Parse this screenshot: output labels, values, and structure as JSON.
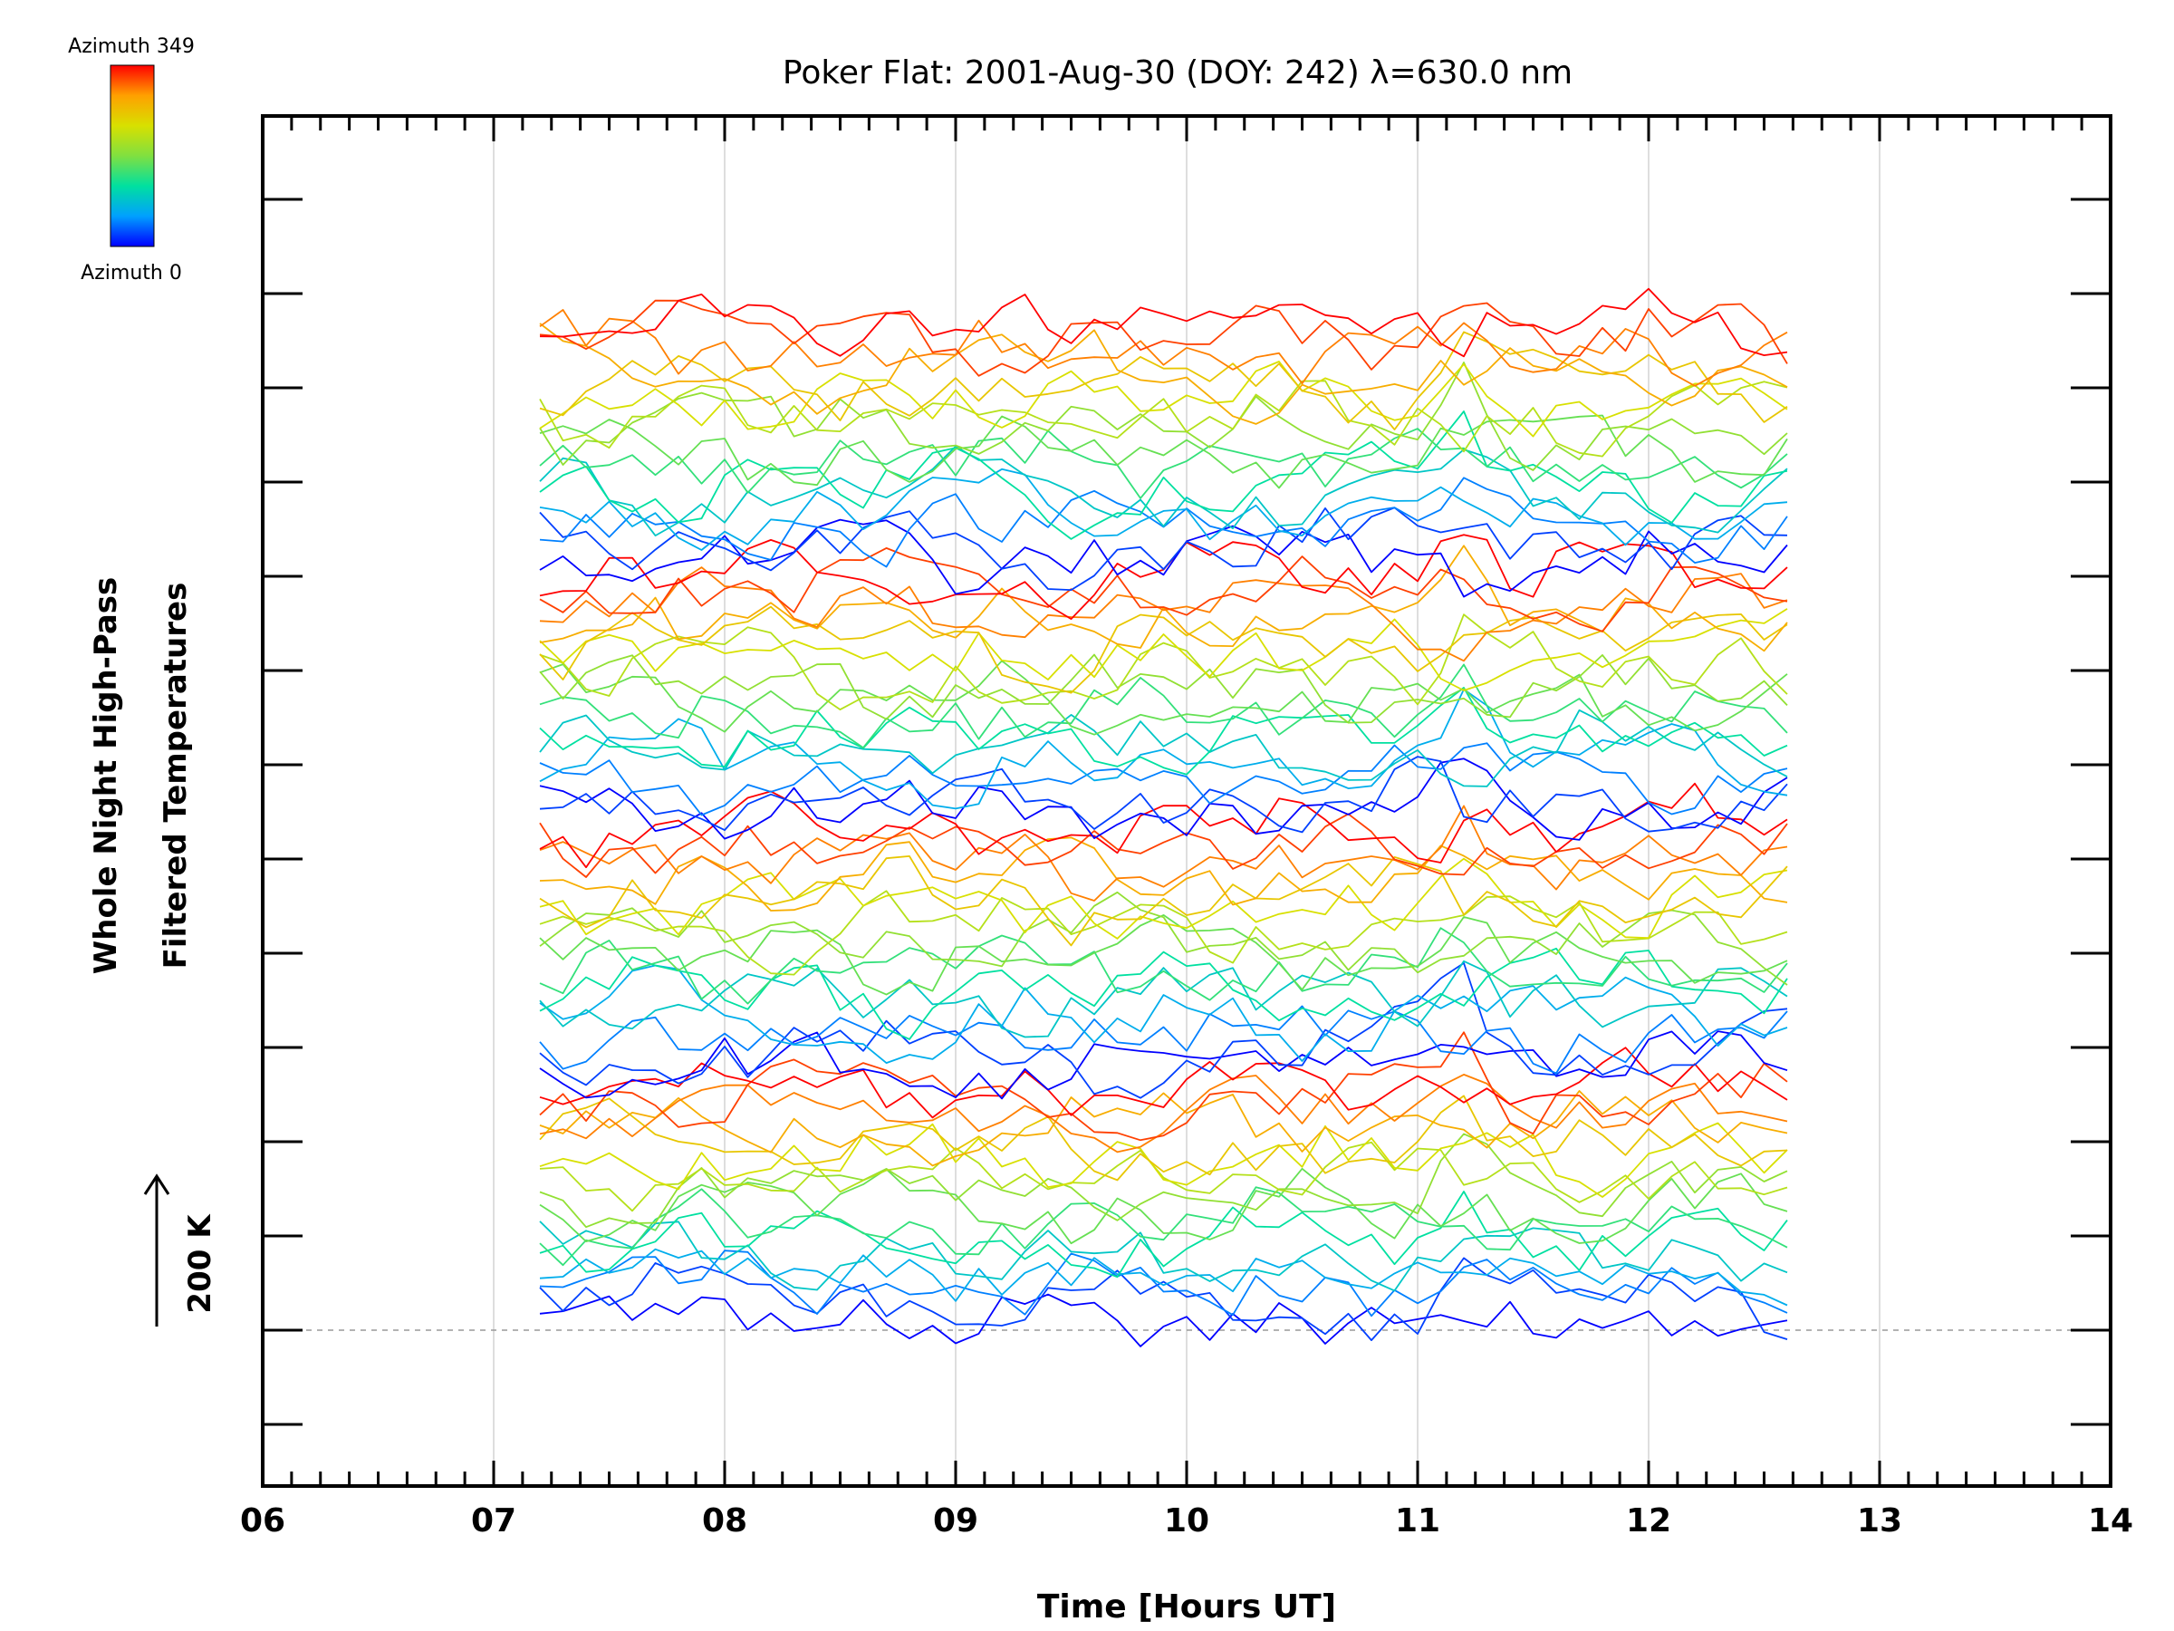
{
  "chart_data": {
    "type": "line",
    "title": "Poker Flat: 2001-Aug-30 (DOY: 242) λ=630.0 nm",
    "xlabel": "Time [Hours UT]",
    "ylabel": [
      "Whole Night High-Pass",
      "Filtered Temperatures"
    ],
    "xlim": [
      6,
      14
    ],
    "x_ticks": [
      "06",
      "07",
      "08",
      "09",
      "10",
      "11",
      "12",
      "13",
      "14"
    ],
    "x_minor_step": 0.125,
    "x_grid_step": 1,
    "grid": true,
    "y_axis": "stacked offsets, no numeric tick labels",
    "y_major_tick_count": 14,
    "scale_bar": {
      "label": "200 K",
      "value_K": 200
    },
    "time_range": [
      7.2,
      12.6
    ],
    "samples_per_trace": 55,
    "trace_count": 64,
    "traces_per_group": 16,
    "trace_groups": 4,
    "colorbar": {
      "top_label": "Azimuth 349",
      "bottom_label": "Azimuth 0",
      "colormap": [
        "#0000ff",
        "#00a0ff",
        "#00e0a0",
        "#80e040",
        "#d8e000",
        "#ffa000",
        "#ff0000"
      ],
      "azimuth_range": [
        0,
        349
      ]
    },
    "legend": "top-left colorbar",
    "baseline_style": "dashed gray"
  }
}
